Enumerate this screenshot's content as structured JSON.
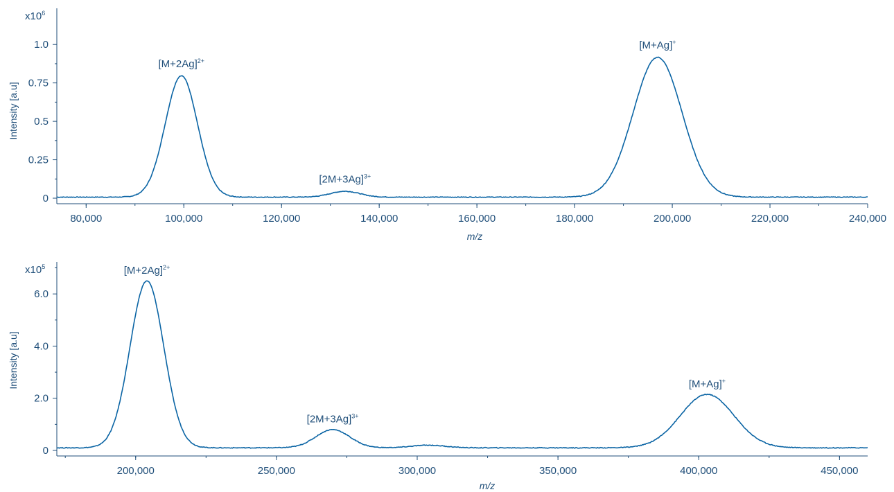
{
  "chart_data": [
    {
      "type": "line",
      "xlabel": "m/z",
      "ylabel": "Intensity [a.u]",
      "y_multiplier_base": "x10",
      "y_multiplier_exp": "6",
      "xlim": [
        74000,
        240000
      ],
      "ylim": [
        0,
        1.12
      ],
      "x_ticks": [
        80000,
        100000,
        120000,
        140000,
        160000,
        180000,
        200000,
        220000,
        240000
      ],
      "x_tick_labels": [
        "80,000",
        "100,000",
        "120,000",
        "140,000",
        "160,000",
        "180,000",
        "200,000",
        "220,000",
        "240,000"
      ],
      "y_ticks": [
        0,
        0.25,
        0.5,
        0.75,
        1.0
      ],
      "y_tick_labels": [
        "0",
        "0.25",
        "0.5",
        "0.75",
        "1.0"
      ],
      "baseline": 0.007,
      "peaks": [
        {
          "center": 99500,
          "height": 0.79,
          "width": 3300
        },
        {
          "center": 133000,
          "height": 0.038,
          "width": 3000
        },
        {
          "center": 197000,
          "height": 0.91,
          "width": 5000
        }
      ],
      "annotations": [
        {
          "text": "[M+2Ag]",
          "sup": "2+",
          "x": 99500,
          "y": 0.79
        },
        {
          "text": "[2M+3Ag]",
          "sup": "3+",
          "x": 133000,
          "y": 0.038
        },
        {
          "text": "[M+Ag]",
          "sup": "+",
          "x": 197000,
          "y": 0.91
        }
      ],
      "color": "#0a64a4"
    },
    {
      "type": "line",
      "xlabel": "m/z",
      "ylabel": "Intensity [a.u]",
      "y_multiplier_base": "x10",
      "y_multiplier_exp": "5",
      "xlim": [
        172000,
        460000
      ],
      "ylim": [
        0,
        7.2
      ],
      "x_ticks": [
        200000,
        250000,
        300000,
        350000,
        400000,
        450000
      ],
      "x_tick_labels": [
        "200,000",
        "250,000",
        "300,000",
        "350,000",
        "400,000",
        "450,000"
      ],
      "y_ticks": [
        0,
        2.0,
        4.0,
        6.0
      ],
      "y_tick_labels": [
        "0",
        "2.0",
        "4.0",
        "6.0"
      ],
      "baseline": 0.1,
      "peaks": [
        {
          "center": 204000,
          "height": 6.4,
          "width": 6000
        },
        {
          "center": 270000,
          "height": 0.7,
          "width": 6000
        },
        {
          "center": 304000,
          "height": 0.1,
          "width": 6000
        },
        {
          "center": 403000,
          "height": 2.05,
          "width": 9500
        }
      ],
      "annotations": [
        {
          "text": "[M+2Ag]",
          "sup": "2+",
          "x": 204000,
          "y": 6.4
        },
        {
          "text": "[2M+3Ag]",
          "sup": "3+",
          "x": 270000,
          "y": 0.7
        },
        {
          "text": "[M+Ag]",
          "sup": "+",
          "x": 403000,
          "y": 2.05
        }
      ],
      "color": "#0a64a4"
    }
  ]
}
